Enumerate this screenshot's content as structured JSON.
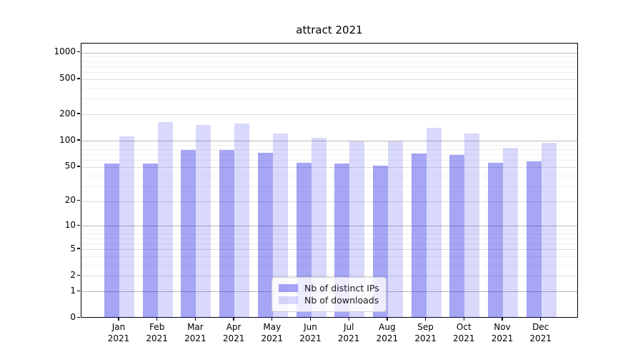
{
  "title": "attract 2021",
  "chart_data": {
    "type": "bar",
    "title": "attract 2021",
    "categories": [
      "Jan 2021",
      "Feb 2021",
      "Mar 2021",
      "Apr 2021",
      "May 2021",
      "Jun 2021",
      "Jul 2021",
      "Aug 2021",
      "Sep 2021",
      "Oct 2021",
      "Nov 2021",
      "Dec 2021"
    ],
    "series": [
      {
        "name": "Nb of distinct IPs",
        "color": "rgba(0,0,225,0.35)",
        "values": [
          55,
          55,
          79,
          79,
          73,
          56,
          55,
          52,
          72,
          69,
          56,
          58
        ]
      },
      {
        "name": "Nb of downloads",
        "color": "rgba(0,0,225,0.15)",
        "values": [
          112,
          164,
          150,
          158,
          120,
          108,
          98,
          98,
          140,
          122,
          83,
          95
        ]
      }
    ],
    "xlabel": "",
    "ylabel": "",
    "y_scale": "log1p",
    "y_ticks": [
      0,
      1,
      2,
      5,
      10,
      20,
      50,
      100,
      200,
      500,
      1000
    ],
    "y_minor_ticks": [
      3,
      4,
      6,
      7,
      8,
      9,
      30,
      40,
      60,
      70,
      80,
      90,
      300,
      400,
      600,
      700,
      800,
      900
    ],
    "ylim": [
      0,
      1267
    ],
    "grid": "on",
    "legend_position": "lower center",
    "grid_major_color": "#b9b9b9",
    "grid_mid_color": "#dcdcdc",
    "grid_minor_color": "#f0f0f0"
  }
}
